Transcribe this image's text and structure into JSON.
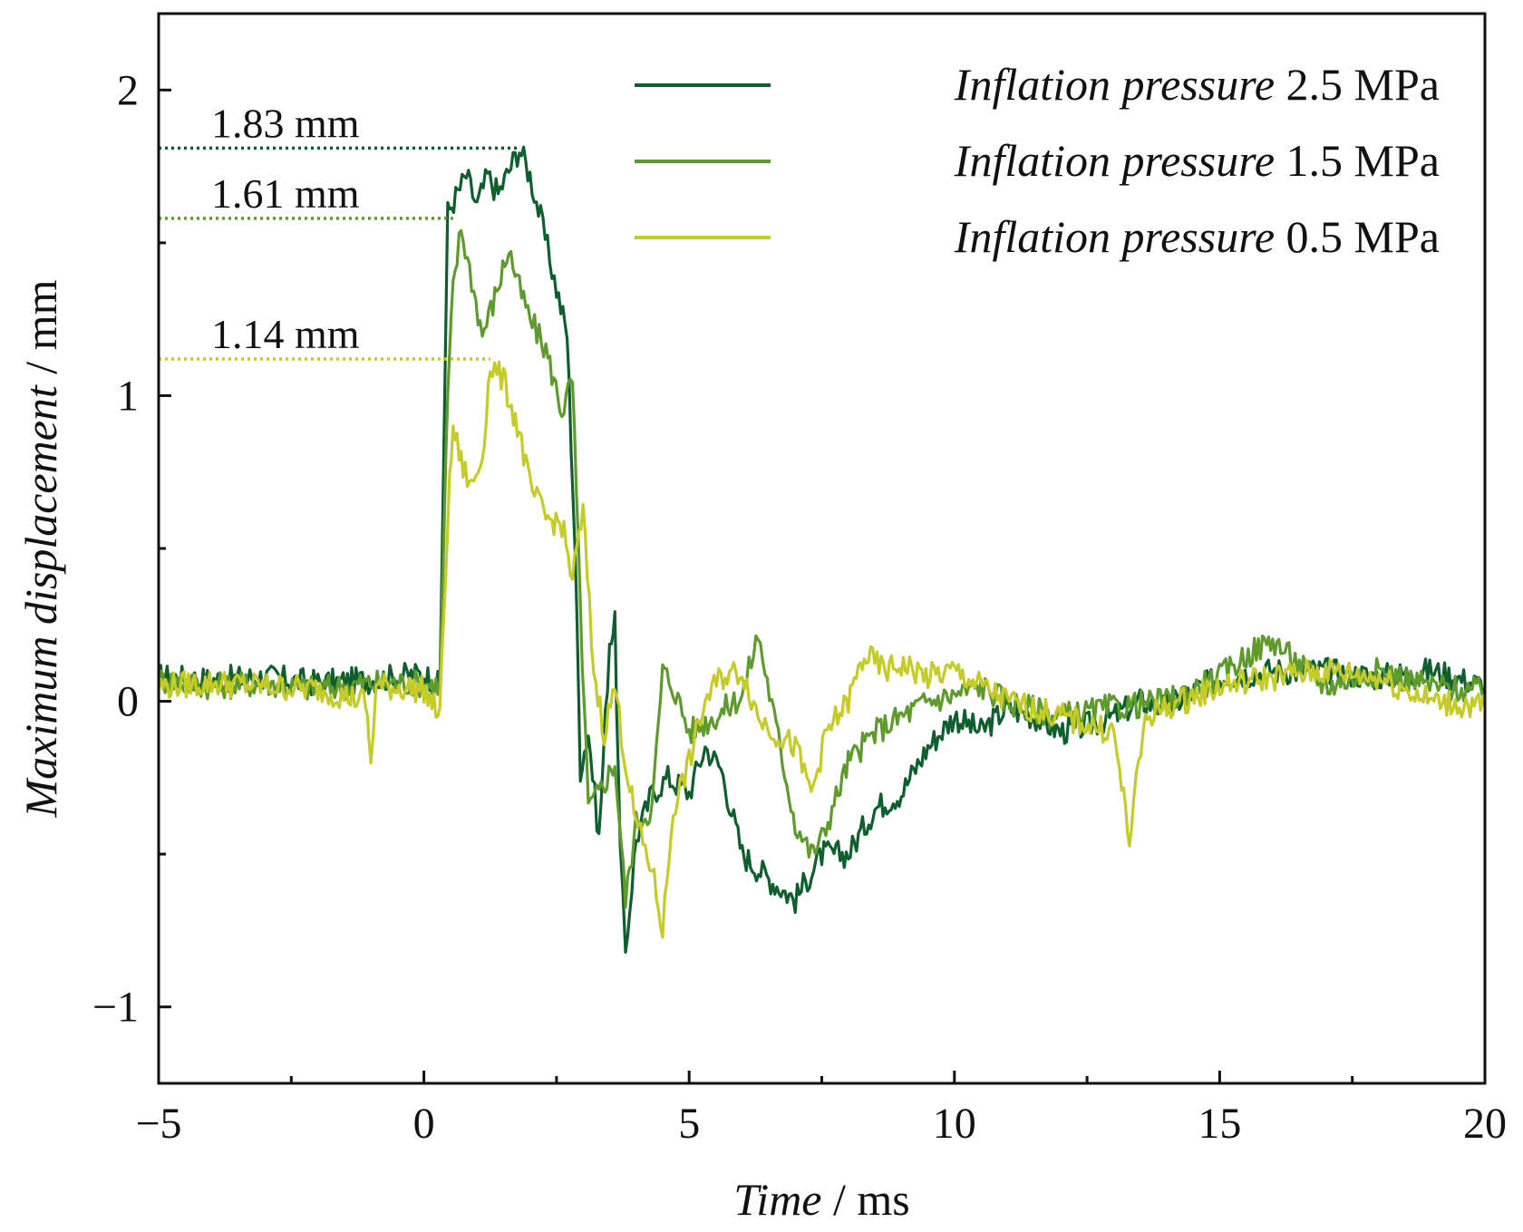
{
  "chart_data": {
    "type": "line",
    "title": "",
    "xlabel": {
      "italic": "Time",
      "unit": " / ms"
    },
    "ylabel": {
      "italic": "Maximum displacement",
      "unit": " / mm"
    },
    "xlim": [
      -5,
      20
    ],
    "ylim": [
      -1.25,
      2.25
    ],
    "xticks": [
      -5,
      0,
      5,
      10,
      15,
      20
    ],
    "xtick_labels": [
      "−5",
      "0",
      "5",
      "10",
      "15",
      "20"
    ],
    "xminor": [
      -2.5,
      2.5,
      7.5,
      12.5,
      17.5
    ],
    "yticks": [
      -1,
      0,
      1,
      2
    ],
    "ytick_labels": [
      "−1",
      "0",
      "1",
      "2"
    ],
    "yminor": [
      -0.5,
      0.5,
      1.5
    ],
    "grid": false,
    "legend_position": "top-right",
    "series": [
      {
        "name": "Inflation pressure 2.5 MPa",
        "label_italic": "Inflation pressure",
        "label_value": " 2.5 MPa",
        "color": "#0f5e2e",
        "points": [
          [
            -5,
            0.08
          ],
          [
            -4,
            0.07
          ],
          [
            -3,
            0.08
          ],
          [
            -2,
            0.06
          ],
          [
            -1,
            0.07
          ],
          [
            0,
            0.09
          ],
          [
            0.3,
            0.05
          ],
          [
            0.45,
            1.6
          ],
          [
            0.6,
            1.65
          ],
          [
            0.8,
            1.72
          ],
          [
            1.0,
            1.62
          ],
          [
            1.2,
            1.72
          ],
          [
            1.4,
            1.66
          ],
          [
            1.8,
            1.81
          ],
          [
            2.0,
            1.72
          ],
          [
            2.2,
            1.58
          ],
          [
            2.5,
            1.35
          ],
          [
            2.7,
            1.2
          ],
          [
            2.85,
            0.5
          ],
          [
            2.95,
            -0.22
          ],
          [
            3.1,
            -0.1
          ],
          [
            3.3,
            -0.45
          ],
          [
            3.5,
            0.2
          ],
          [
            3.6,
            0.25
          ],
          [
            3.7,
            -0.5
          ],
          [
            3.8,
            -0.82
          ],
          [
            4.0,
            -0.45
          ],
          [
            4.3,
            -0.3
          ],
          [
            4.6,
            -0.25
          ],
          [
            5.0,
            -0.3
          ],
          [
            5.3,
            -0.15
          ],
          [
            5.6,
            -0.22
          ],
          [
            6.0,
            -0.5
          ],
          [
            6.5,
            -0.58
          ],
          [
            7.0,
            -0.65
          ],
          [
            7.5,
            -0.5
          ],
          [
            8.0,
            -0.5
          ],
          [
            8.5,
            -0.35
          ],
          [
            9.0,
            -0.3
          ],
          [
            9.5,
            -0.15
          ],
          [
            10,
            -0.05
          ],
          [
            10.5,
            -0.1
          ],
          [
            11,
            -0.02
          ],
          [
            11.5,
            -0.05
          ],
          [
            12,
            -0.1
          ],
          [
            12.5,
            -0.08
          ],
          [
            13,
            -0.05
          ],
          [
            13.5,
            0.0
          ],
          [
            14,
            -0.02
          ],
          [
            15,
            0.08
          ],
          [
            16,
            0.1
          ],
          [
            17,
            0.1
          ],
          [
            18,
            0.08
          ],
          [
            19,
            0.1
          ],
          [
            20,
            0.05
          ]
        ]
      },
      {
        "name": "Inflation pressure 1.5 MPa",
        "label_italic": "Inflation pressure",
        "label_value": " 1.5 MPa",
        "color": "#5e9a2c",
        "points": [
          [
            -5,
            0.07
          ],
          [
            -4,
            0.05
          ],
          [
            -3,
            0.06
          ],
          [
            -2,
            0.04
          ],
          [
            -1,
            0.06
          ],
          [
            0,
            0.06
          ],
          [
            0.3,
            0.05
          ],
          [
            0.45,
            1.0
          ],
          [
            0.55,
            1.35
          ],
          [
            0.7,
            1.55
          ],
          [
            0.9,
            1.38
          ],
          [
            1.1,
            1.2
          ],
          [
            1.3,
            1.3
          ],
          [
            1.6,
            1.48
          ],
          [
            1.8,
            1.35
          ],
          [
            2.0,
            1.25
          ],
          [
            2.3,
            1.15
          ],
          [
            2.6,
            0.95
          ],
          [
            2.8,
            1.05
          ],
          [
            2.95,
            0.3
          ],
          [
            3.1,
            -0.35
          ],
          [
            3.3,
            -0.3
          ],
          [
            3.6,
            -0.2
          ],
          [
            3.8,
            -0.65
          ],
          [
            4.0,
            -0.4
          ],
          [
            4.3,
            -0.35
          ],
          [
            4.5,
            0.1
          ],
          [
            4.7,
            0.05
          ],
          [
            5.0,
            -0.1
          ],
          [
            5.5,
            -0.05
          ],
          [
            6.0,
            0.02
          ],
          [
            6.3,
            0.22
          ],
          [
            6.6,
            -0.05
          ],
          [
            7.0,
            -0.4
          ],
          [
            7.3,
            -0.5
          ],
          [
            7.5,
            -0.45
          ],
          [
            8.0,
            -0.2
          ],
          [
            8.5,
            -0.1
          ],
          [
            9.0,
            -0.05
          ],
          [
            9.5,
            0.0
          ],
          [
            10,
            0.02
          ],
          [
            10.5,
            0.05
          ],
          [
            11,
            0.0
          ],
          [
            12,
            -0.05
          ],
          [
            13,
            -0.02
          ],
          [
            14,
            0.0
          ],
          [
            15,
            0.08
          ],
          [
            15.5,
            0.15
          ],
          [
            16,
            0.2
          ],
          [
            16.5,
            0.12
          ],
          [
            17,
            0.05
          ],
          [
            18,
            0.1
          ],
          [
            19,
            0.05
          ],
          [
            20,
            0.03
          ]
        ]
      },
      {
        "name": "Inflation pressure 0.5 MPa",
        "label_italic": "Inflation pressure",
        "label_value": " 0.5 MPa",
        "color": "#c5cc2a",
        "points": [
          [
            -5,
            0.05
          ],
          [
            -4,
            0.06
          ],
          [
            -3,
            0.05
          ],
          [
            -2,
            0.04
          ],
          [
            -1.1,
            0.0
          ],
          [
            -1,
            -0.2
          ],
          [
            -0.9,
            0.05
          ],
          [
            0,
            0.04
          ],
          [
            0.3,
            -0.05
          ],
          [
            0.45,
            0.6
          ],
          [
            0.55,
            0.9
          ],
          [
            0.7,
            0.78
          ],
          [
            0.9,
            0.7
          ],
          [
            1.1,
            0.8
          ],
          [
            1.25,
            1.1
          ],
          [
            1.5,
            1.05
          ],
          [
            1.8,
            0.88
          ],
          [
            2.0,
            0.7
          ],
          [
            2.3,
            0.6
          ],
          [
            2.6,
            0.58
          ],
          [
            2.8,
            0.4
          ],
          [
            3.0,
            0.62
          ],
          [
            3.2,
            0.1
          ],
          [
            3.4,
            -0.1
          ],
          [
            3.6,
            0.05
          ],
          [
            3.8,
            -0.2
          ],
          [
            4.0,
            -0.4
          ],
          [
            4.3,
            -0.55
          ],
          [
            4.5,
            -0.75
          ],
          [
            4.7,
            -0.35
          ],
          [
            5.0,
            -0.2
          ],
          [
            5.3,
            0.0
          ],
          [
            5.6,
            0.08
          ],
          [
            6.0,
            0.1
          ],
          [
            6.3,
            -0.05
          ],
          [
            6.6,
            -0.1
          ],
          [
            7.0,
            -0.15
          ],
          [
            7.3,
            -0.3
          ],
          [
            7.6,
            -0.1
          ],
          [
            8.0,
            0.0
          ],
          [
            8.3,
            0.15
          ],
          [
            8.7,
            0.1
          ],
          [
            9.0,
            0.12
          ],
          [
            9.5,
            0.08
          ],
          [
            10,
            0.1
          ],
          [
            10.5,
            0.05
          ],
          [
            11,
            0.0
          ],
          [
            12,
            -0.05
          ],
          [
            13,
            -0.1
          ],
          [
            13.3,
            -0.45
          ],
          [
            13.6,
            -0.05
          ],
          [
            14,
            -0.02
          ],
          [
            15,
            0.05
          ],
          [
            16,
            0.08
          ],
          [
            17,
            0.1
          ],
          [
            18,
            0.08
          ],
          [
            19,
            0.0
          ],
          [
            20,
            -0.02
          ]
        ]
      }
    ],
    "annotations": [
      {
        "text": "1.83 mm",
        "y": 1.81,
        "x_end": 1.8,
        "color": "#0f5e2e"
      },
      {
        "text": "1.61 mm",
        "y": 1.58,
        "x_end": 0.55,
        "color": "#5e9a2c"
      },
      {
        "text": "1.14 mm",
        "y": 1.12,
        "x_end": 1.25,
        "color": "#c5cc2a"
      }
    ]
  }
}
